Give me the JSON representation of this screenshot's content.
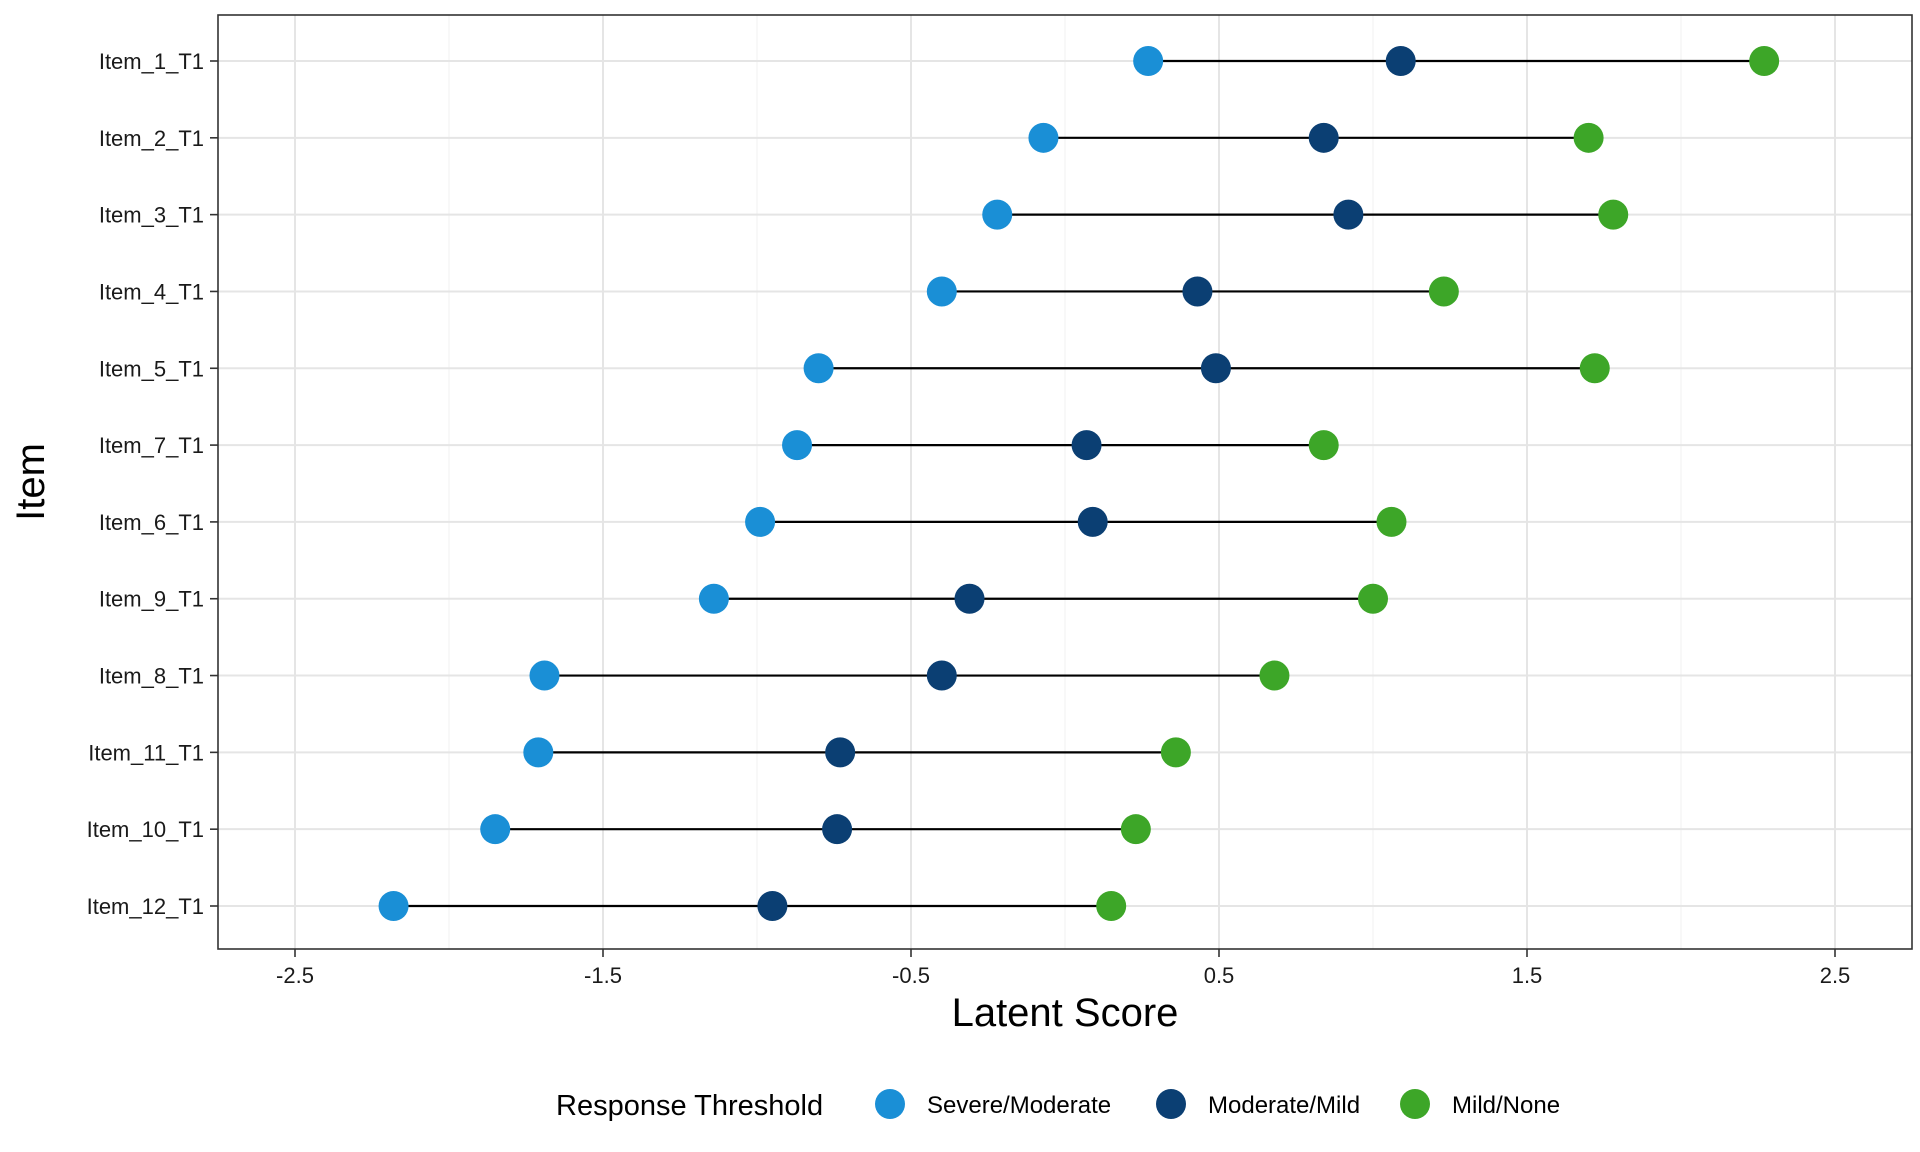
{
  "chart_data": {
    "type": "dot-range",
    "xlabel": "Latent Score",
    "ylabel": "Item",
    "xlim": [
      -2.75,
      2.75
    ],
    "x_ticks": [
      "-2.5",
      "-1.5",
      "-0.5",
      "0.5",
      "1.5",
      "2.5"
    ],
    "x_minor_gridlines": [
      -2.0,
      -1.0,
      0.0,
      1.0,
      2.0
    ],
    "grid": true,
    "legend": {
      "title": "Response Threshold",
      "position": "bottom",
      "entries": [
        "Severe/Moderate",
        "Moderate/Mild",
        "Mild/None"
      ]
    },
    "colors": {
      "Severe/Moderate": "#1a8fd6",
      "Moderate/Mild": "#0b3f73",
      "Mild/None": "#3da628",
      "connector": "#000000",
      "grid": "#e5e5e5",
      "panel_border": "#333333"
    },
    "categories": [
      "Item_1_T1",
      "Item_2_T1",
      "Item_3_T1",
      "Item_4_T1",
      "Item_5_T1",
      "Item_7_T1",
      "Item_6_T1",
      "Item_9_T1",
      "Item_8_T1",
      "Item_11_T1",
      "Item_10_T1",
      "Item_12_T1"
    ],
    "series": [
      {
        "name": "Severe/Moderate",
        "values": [
          0.27,
          -0.07,
          -0.22,
          -0.4,
          -0.8,
          -0.87,
          -0.99,
          -1.14,
          -1.69,
          -1.71,
          -1.85,
          -2.18
        ]
      },
      {
        "name": "Moderate/Mild",
        "values": [
          1.09,
          0.84,
          0.92,
          0.43,
          0.49,
          0.07,
          0.09,
          -0.31,
          -0.4,
          -0.73,
          -0.74,
          -0.95
        ]
      },
      {
        "name": "Mild/None",
        "values": [
          2.27,
          1.7,
          1.78,
          1.23,
          1.72,
          0.84,
          1.06,
          1.0,
          0.68,
          0.36,
          0.23,
          0.15
        ]
      }
    ]
  }
}
